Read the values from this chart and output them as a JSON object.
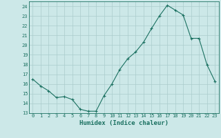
{
  "x": [
    0,
    1,
    2,
    3,
    4,
    5,
    6,
    7,
    8,
    9,
    10,
    11,
    12,
    13,
    14,
    15,
    16,
    17,
    18,
    19,
    20,
    21,
    22,
    23
  ],
  "y": [
    16.5,
    15.8,
    15.3,
    14.6,
    14.7,
    14.4,
    13.4,
    13.2,
    13.2,
    14.8,
    16.0,
    17.5,
    18.6,
    19.3,
    20.3,
    21.7,
    23.0,
    24.1,
    23.6,
    23.1,
    20.7,
    20.7,
    18.0,
    16.3
  ],
  "xlabel": "Humidex (Indice chaleur)",
  "ylim": [
    13,
    24.5
  ],
  "xlim": [
    -0.5,
    23.5
  ],
  "yticks": [
    13,
    14,
    15,
    16,
    17,
    18,
    19,
    20,
    21,
    22,
    23,
    24
  ],
  "xticks": [
    0,
    1,
    2,
    3,
    4,
    5,
    6,
    7,
    8,
    9,
    10,
    11,
    12,
    13,
    14,
    15,
    16,
    17,
    18,
    19,
    20,
    21,
    22,
    23
  ],
  "line_color": "#1a7060",
  "marker": "+",
  "bg_color": "#cce8e8",
  "grid_color": "#aacccc",
  "axis_color": "#1a7060",
  "label_color": "#1a7060"
}
